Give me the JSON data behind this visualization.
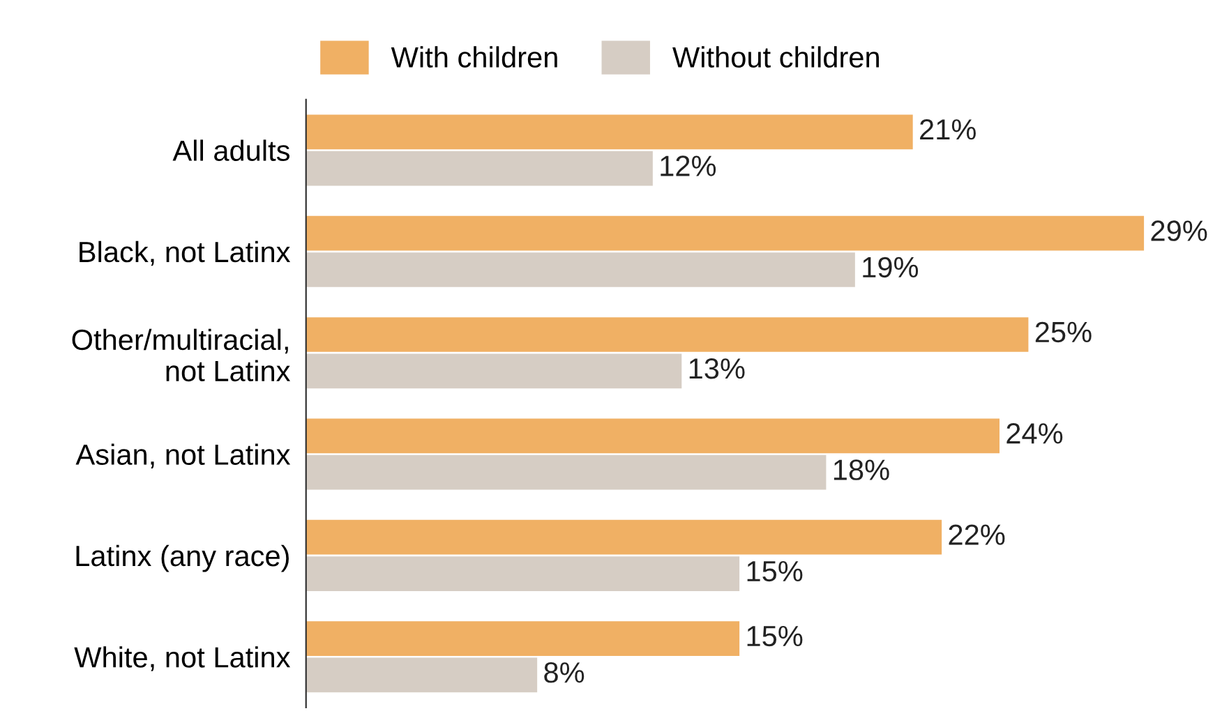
{
  "chart_data": {
    "type": "bar",
    "orientation": "horizontal",
    "categories": [
      "All adults",
      "Black, not Latinx",
      "Other/multiracial,\nnot Latinx",
      "Asian, not Latinx",
      "Latinx (any race)",
      "White, not Latinx"
    ],
    "series": [
      {
        "name": "With children",
        "color": "#f0b064",
        "values": [
          21,
          29,
          25,
          24,
          22,
          15
        ],
        "value_labels": [
          "21%",
          "29%",
          "25%",
          "24%",
          "22%",
          "15%"
        ]
      },
      {
        "name": "Without children",
        "color": "#d6cdc4",
        "values": [
          12,
          19,
          13,
          18,
          15,
          8
        ],
        "value_labels": [
          "12%",
          "19%",
          "13%",
          "18%",
          "15%",
          "8%"
        ]
      }
    ],
    "legend": "top",
    "grid": false
  }
}
